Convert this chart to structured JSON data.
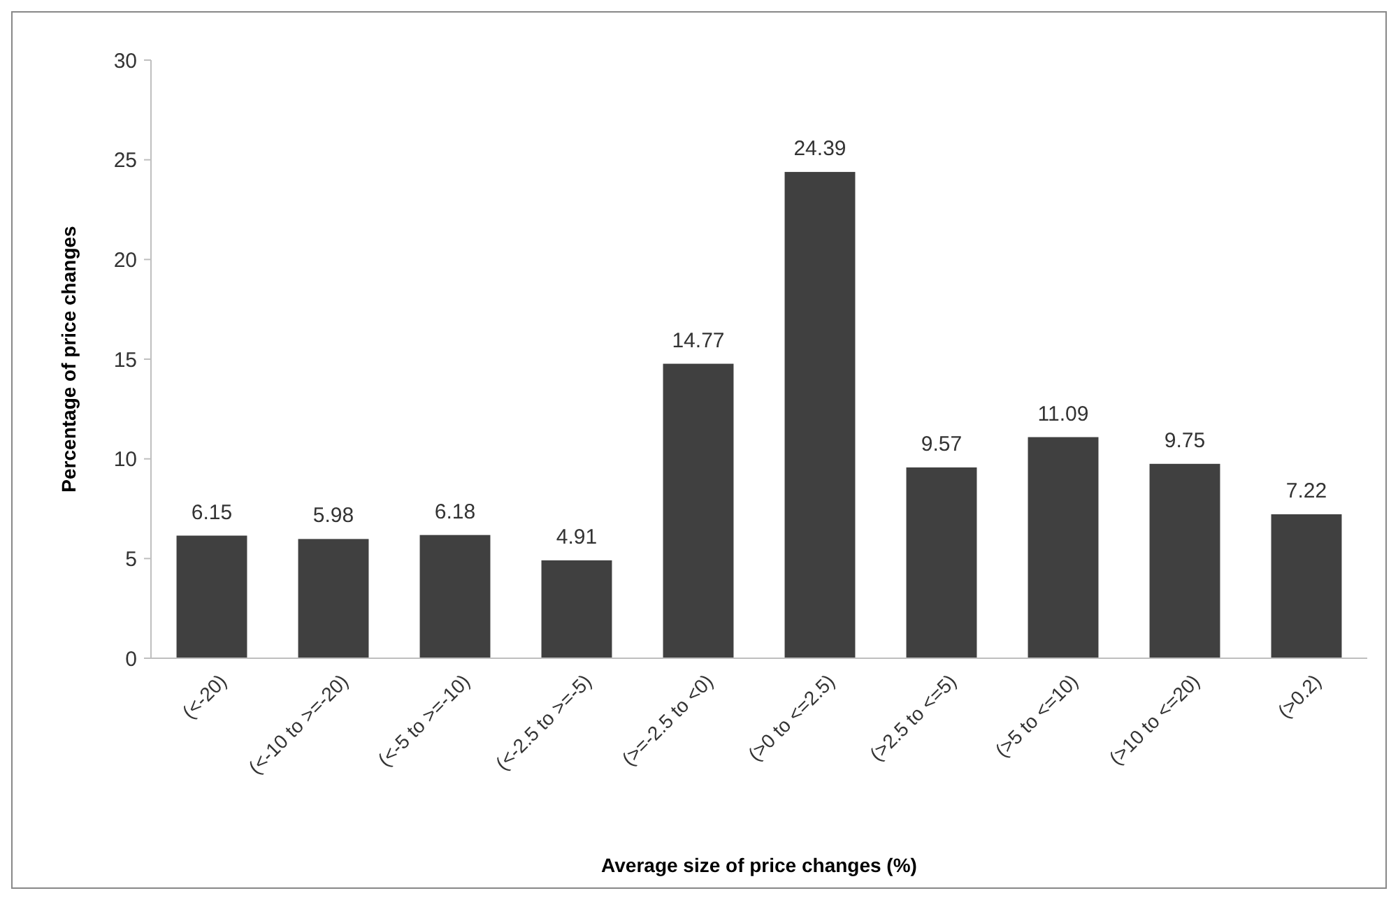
{
  "chart_data": {
    "type": "bar",
    "xlabel": "Average size of price changes (%)",
    "ylabel": "Percentage of price changes",
    "categories": [
      "(<-20)",
      "(<-10 to >=-20)",
      "(<-5 to >=-10)",
      "(<-2.5 to >=-5)",
      "(>=-2.5 to <0)",
      "(>0 to <=2.5)",
      "(>2.5 to <=5)",
      "(>5 to <=10)",
      "(>10 to <=20)",
      "(>0.2)"
    ],
    "values": [
      6.15,
      5.98,
      6.18,
      4.91,
      14.77,
      24.39,
      9.57,
      11.09,
      9.75,
      7.22
    ],
    "color": "#404040",
    "ylim": [
      0,
      30
    ],
    "yticks": [
      0,
      5,
      10,
      15,
      20,
      25,
      30
    ],
    "data_labels": true
  }
}
